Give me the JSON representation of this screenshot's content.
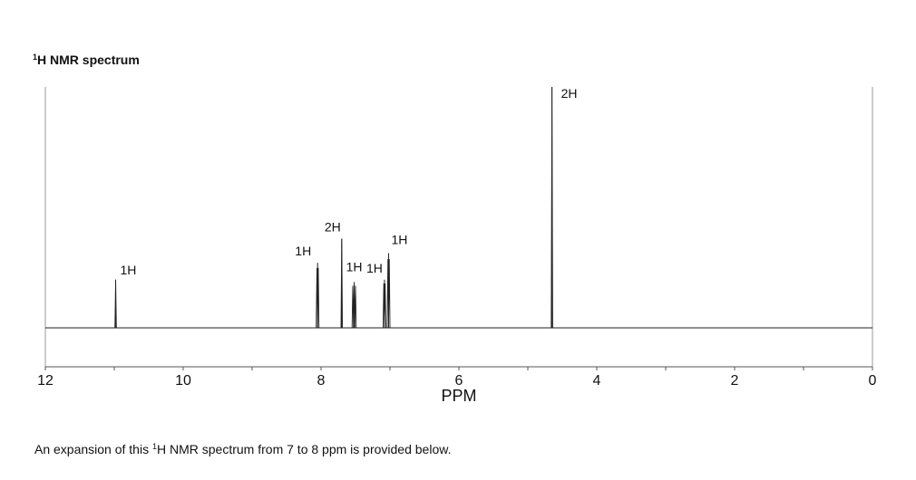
{
  "heading": {
    "sup": "1",
    "text": "H NMR spectrum"
  },
  "caption": {
    "before": "An expansion of this ",
    "sup": "1",
    "after": "H NMR spectrum from 7 to 8 ppm is provided below."
  },
  "chart_data": {
    "type": "line",
    "title": "1H NMR spectrum",
    "xlabel": "PPM",
    "ylabel": "",
    "xlim": [
      12,
      0
    ],
    "x_reversed": true,
    "ticks": [
      12,
      10,
      8,
      6,
      4,
      2,
      0
    ],
    "tick_labels": [
      "12",
      "10",
      "8",
      "6",
      "4",
      "2",
      "0"
    ],
    "grid": false,
    "peaks": [
      {
        "ppm": 10.98,
        "height": 0.2,
        "lines": 1,
        "integration": "1H"
      },
      {
        "ppm": 8.05,
        "height": 0.27,
        "lines": 2,
        "integration": "1H"
      },
      {
        "ppm": 7.7,
        "height": 0.37,
        "lines": 1,
        "integration": "2H"
      },
      {
        "ppm": 7.52,
        "height": 0.19,
        "lines": 3,
        "integration": "1H"
      },
      {
        "ppm": 7.08,
        "height": 0.2,
        "lines": 2,
        "integration": "1H"
      },
      {
        "ppm": 7.02,
        "height": 0.31,
        "lines": 2,
        "integration": "1H"
      },
      {
        "ppm": 4.65,
        "height": 1.0,
        "lines": 1,
        "integration": "2H"
      }
    ]
  }
}
